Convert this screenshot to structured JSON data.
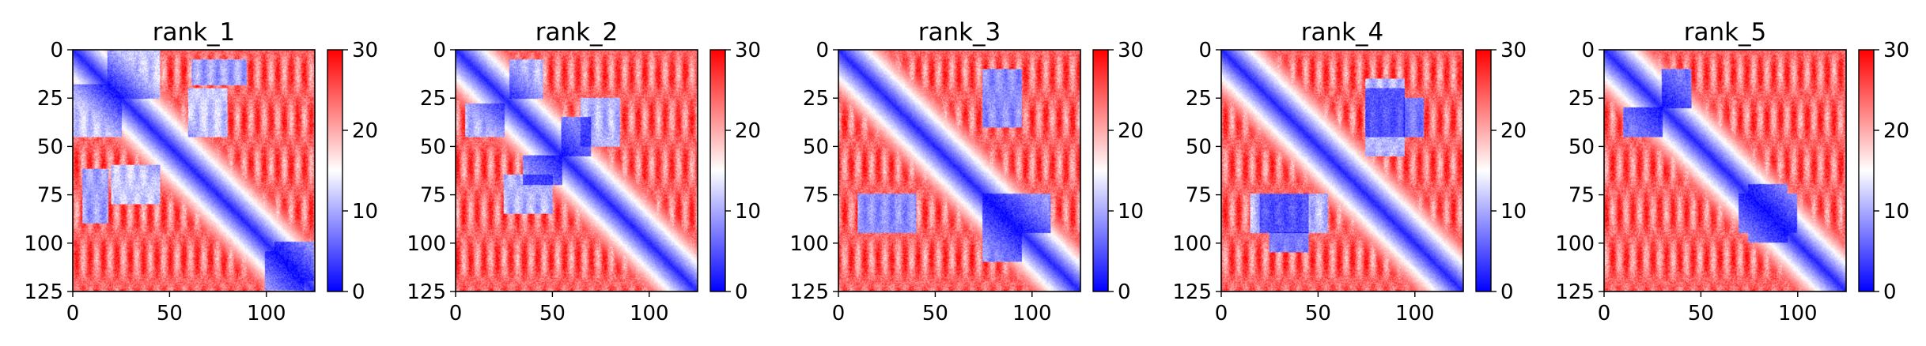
{
  "chart_data": [
    {
      "type": "heatmap",
      "title": "rank_1",
      "x_ticks": [
        0,
        50,
        100
      ],
      "y_ticks": [
        0,
        25,
        50,
        75,
        100,
        125
      ],
      "xlim": [
        0,
        125
      ],
      "ylim": [
        125,
        0
      ],
      "colorbar": {
        "range": [
          0,
          30
        ],
        "ticks": [
          0,
          10,
          20,
          30
        ],
        "colors": [
          "#0000ff",
          "#ffffff",
          "#ff0000"
        ]
      },
      "low_blocks": [
        [
          0,
          25,
          18,
          45,
          0.5
        ],
        [
          20,
          45,
          60,
          80,
          0.5
        ],
        [
          62,
          90,
          5,
          18,
          0.4
        ],
        [
          100,
          120,
          105,
          125,
          0.4
        ]
      ]
    },
    {
      "type": "heatmap",
      "title": "rank_2",
      "x_ticks": [
        0,
        50,
        100
      ],
      "y_ticks": [
        0,
        25,
        50,
        75,
        100,
        125
      ],
      "xlim": [
        0,
        125
      ],
      "ylim": [
        125,
        0
      ],
      "colorbar": {
        "range": [
          0,
          30
        ],
        "ticks": [
          0,
          10,
          20,
          30
        ],
        "colors": [
          "#0000ff",
          "#ffffff",
          "#ff0000"
        ]
      },
      "low_blocks": [
        [
          5,
          25,
          28,
          45,
          0.45
        ],
        [
          25,
          50,
          65,
          85,
          0.45
        ],
        [
          55,
          70,
          35,
          55,
          0.35
        ]
      ]
    },
    {
      "type": "heatmap",
      "title": "rank_3",
      "x_ticks": [
        0,
        50,
        100
      ],
      "y_ticks": [
        0,
        25,
        50,
        75,
        100,
        125
      ],
      "xlim": [
        0,
        125
      ],
      "ylim": [
        125,
        0
      ],
      "colorbar": {
        "range": [
          0,
          30
        ],
        "ticks": [
          0,
          10,
          20,
          30
        ],
        "colors": [
          "#0000ff",
          "#ffffff",
          "#ff0000"
        ]
      },
      "low_blocks": [
        [
          10,
          40,
          75,
          95,
          0.35
        ],
        [
          75,
          95,
          75,
          110,
          0.35
        ]
      ]
    },
    {
      "type": "heatmap",
      "title": "rank_4",
      "x_ticks": [
        0,
        50,
        100
      ],
      "y_ticks": [
        0,
        25,
        50,
        75,
        100,
        125
      ],
      "xlim": [
        0,
        125
      ],
      "ylim": [
        125,
        0
      ],
      "colorbar": {
        "range": [
          0,
          30
        ],
        "ticks": [
          0,
          10,
          20,
          30
        ],
        "colors": [
          "#0000ff",
          "#ffffff",
          "#ff0000"
        ]
      },
      "low_blocks": [
        [
          20,
          55,
          75,
          95,
          0.45
        ],
        [
          75,
          95,
          15,
          45,
          0.45
        ],
        [
          95,
          105,
          25,
          45,
          0.3
        ]
      ]
    },
    {
      "type": "heatmap",
      "title": "rank_5",
      "x_ticks": [
        0,
        50,
        100
      ],
      "y_ticks": [
        0,
        25,
        50,
        75,
        100,
        125
      ],
      "xlim": [
        0,
        125
      ],
      "ylim": [
        125,
        0
      ],
      "colorbar": {
        "range": [
          0,
          30
        ],
        "ticks": [
          0,
          10,
          20,
          30
        ],
        "colors": [
          "#0000ff",
          "#ffffff",
          "#ff0000"
        ]
      },
      "low_blocks": [
        [
          10,
          30,
          30,
          45,
          0.3
        ],
        [
          70,
          100,
          75,
          95,
          0.35
        ]
      ]
    }
  ]
}
